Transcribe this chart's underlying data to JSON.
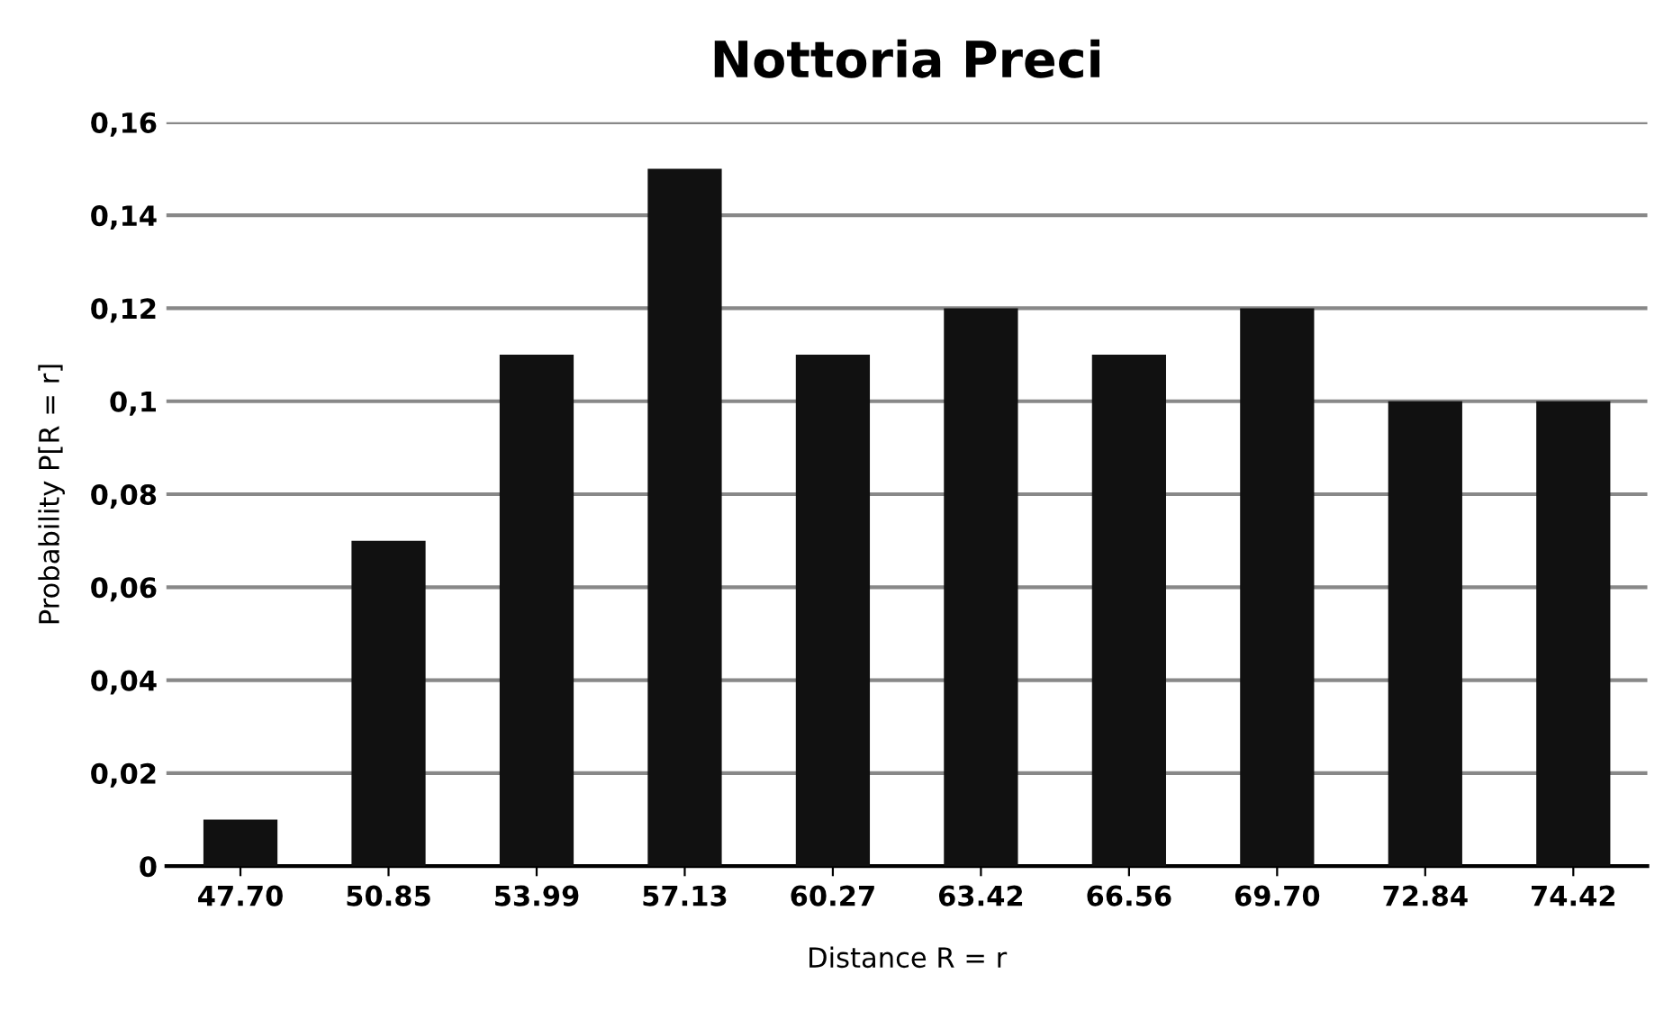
{
  "chart_data": {
    "type": "bar",
    "title": "Nottoria Preci",
    "xlabel": "Distance R = r",
    "ylabel": "Probability P[R = r]",
    "categories": [
      "47.70",
      "50.85",
      "53.99",
      "57.13",
      "60.27",
      "63.42",
      "66.56",
      "69.70",
      "72.84",
      "74.42"
    ],
    "values": [
      0.01,
      0.07,
      0.11,
      0.15,
      0.11,
      0.12,
      0.11,
      0.12,
      0.1,
      0.1
    ],
    "color": "#111111",
    "ylim": [
      0,
      0.16
    ],
    "yticks": [
      0,
      {
        "value": 0.02,
        "label": "0,02"
      },
      {
        "value": 0.04,
        "label": "0,04"
      },
      {
        "value": 0.06,
        "label": "0,06"
      },
      {
        "value": 0.08,
        "label": "0,08"
      },
      {
        "value": 0.1,
        "label": "0,1"
      },
      {
        "value": 0.12,
        "label": "0,12"
      },
      {
        "value": 0.14,
        "label": "0,14"
      },
      {
        "value": 0.16,
        "label": "0,16"
      }
    ],
    "grid": "y",
    "legend": false
  }
}
